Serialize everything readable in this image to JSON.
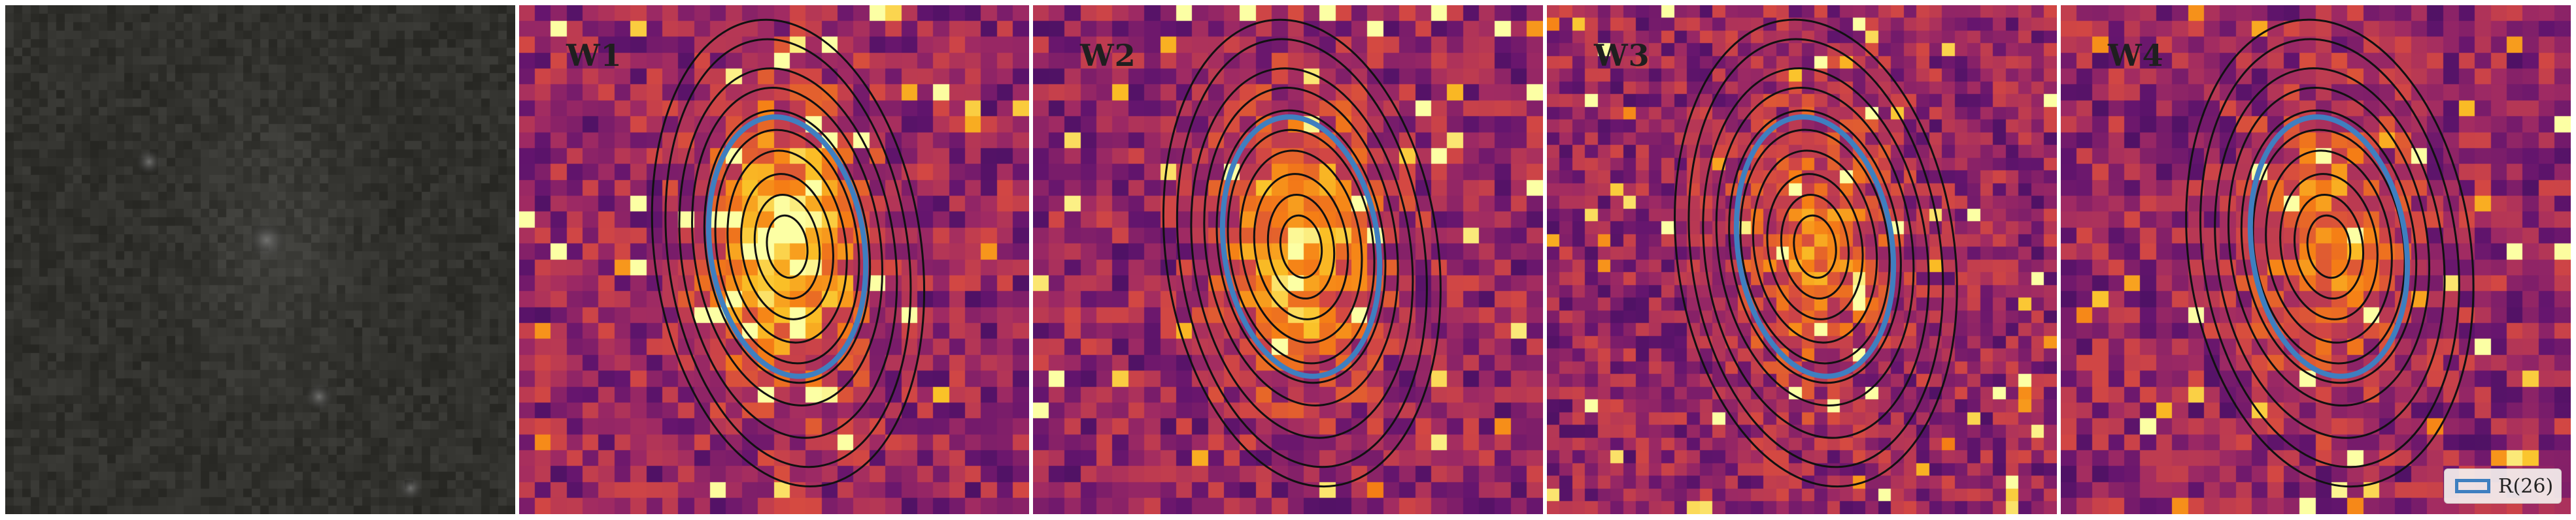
{
  "figure": {
    "panels": [
      {
        "id": "optical",
        "label": "",
        "kind": "grayscale"
      },
      {
        "id": "w1",
        "label": "W1",
        "kind": "colormap",
        "bright": 1.0
      },
      {
        "id": "w2",
        "label": "W2",
        "kind": "colormap",
        "bright": 0.85
      },
      {
        "id": "w3",
        "label": "W3",
        "kind": "colormap",
        "bright": 0.55
      },
      {
        "id": "w4",
        "label": "W4",
        "kind": "colormap",
        "bright": 0.6
      }
    ],
    "legend": {
      "label": "R(26)",
      "color": "#3f7fc0"
    },
    "colors": {
      "contour": "#111111",
      "aperture": "#3f7fc0"
    }
  }
}
